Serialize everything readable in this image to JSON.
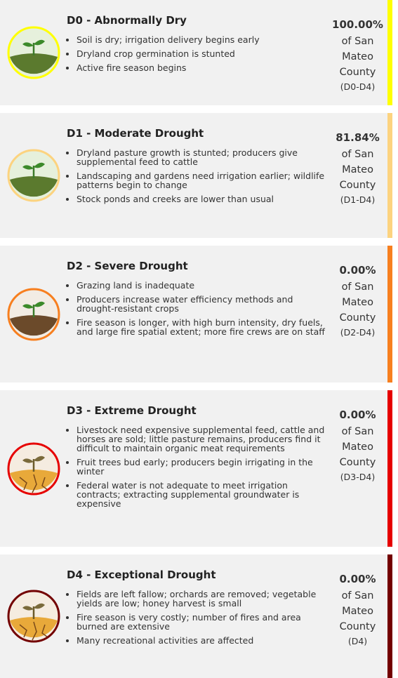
{
  "cards": [
    {
      "title": "D0 - Abnormally Dry",
      "color": "#ffff00",
      "bullets": [
        "Soil is dry; irrigation delivery begins early",
        "Dryland crop germination is stunted",
        "Active fire season begins"
      ],
      "percent": "100.00%",
      "location": "of San Mateo County",
      "range": "(D0-D4)"
    },
    {
      "title": "D1 - Moderate Drought",
      "color": "#fcd37f",
      "bullets": [
        "Dryland pasture growth is stunted; producers give supplemental feed to cattle",
        "Landscaping and gardens need irrigation earlier; wildlife patterns begin to change",
        "Stock ponds and creeks are lower than usual"
      ],
      "percent": "81.84%",
      "location": "of San Mateo County",
      "range": "(D1-D4)"
    },
    {
      "title": "D2 - Severe Drought",
      "color": "#f77f1f",
      "bullets": [
        "Grazing land is inadequate",
        "Producers increase water efficiency methods and drought-resistant crops",
        "Fire season is longer, with high burn intensity, dry fuels, and large fire spatial extent; more fire crews are on staff"
      ],
      "percent": "0.00%",
      "location": "of San Mateo County",
      "range": "(D2-D4)"
    },
    {
      "title": "D3 - Extreme Drought",
      "color": "#e60000",
      "bullets": [
        "Livestock need expensive supplemental feed, cattle and horses are sold; little pasture remains, producers find it difficult to maintain organic meat requirements",
        "Fruit trees bud early; producers begin irrigating in the winter",
        "Federal water is not adequate to meet irrigation contracts; extracting supplemental groundwater is expensive"
      ],
      "percent": "0.00%",
      "location": "of San Mateo County",
      "range": "(D3-D4)"
    },
    {
      "title": "D4 - Exceptional Drought",
      "color": "#730000",
      "bullets": [
        "Fields are left fallow; orchards are removed; vegetable yields are low; honey harvest is small",
        "Fire season is very costly; number of fires and area burned are extensive",
        "Many recreational activities are affected"
      ],
      "percent": "0.00%",
      "location": "of San Mateo County",
      "range": "(D4)"
    }
  ]
}
